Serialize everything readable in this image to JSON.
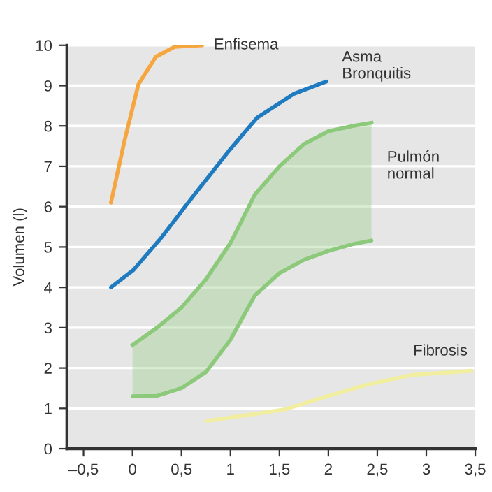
{
  "chart_data": {
    "type": "line",
    "ylabel": "Volumen (l)",
    "xlim": [
      -0.67,
      3.5
    ],
    "xticks": [
      {
        "value": -0.5,
        "label": "–0,5"
      },
      0,
      {
        "value": 0.5,
        "label": "0,5"
      },
      1,
      {
        "value": 1.5,
        "label": "1,5"
      },
      2,
      {
        "value": 2.5,
        "label": "2,5"
      },
      3,
      {
        "value": 3.5,
        "label": "3,5"
      }
    ],
    "ylim": [
      0,
      10
    ],
    "yticks": [
      0,
      1,
      2,
      3,
      4,
      5,
      6,
      7,
      8,
      9,
      10
    ],
    "grid": "y",
    "series": [
      {
        "name": "Enfisema",
        "color": "#f5a640",
        "x": [
          -0.22,
          -0.08,
          0.06,
          0.24,
          0.43,
          0.71
        ],
        "values": [
          6.1,
          7.65,
          9.03,
          9.72,
          9.96,
          10.0
        ]
      },
      {
        "name": "Asma\nBronquitis",
        "color": "#1f7bc0",
        "x": [
          -0.22,
          0.01,
          0.29,
          0.62,
          0.99,
          1.27,
          1.65,
          1.98
        ],
        "values": [
          4.0,
          4.43,
          5.22,
          6.26,
          7.4,
          8.2,
          8.8,
          9.1
        ]
      },
      {
        "type": "line",
        "color": "#8cc97a",
        "x": [
          0,
          0.25,
          0.5,
          0.75,
          1,
          1.25,
          1.5,
          1.75,
          2,
          2.25,
          2.44
        ],
        "values": [
          1.3,
          1.31,
          1.5,
          1.9,
          2.7,
          3.8,
          4.35,
          4.68,
          4.9,
          5.07,
          5.16
        ]
      },
      {
        "name": "Pulmón\nnormal",
        "type": "area",
        "color": "#8cc97a",
        "x": [
          0,
          0.25,
          0.5,
          0.75,
          1,
          1.25,
          1.5,
          1.75,
          2,
          2.25,
          2.44
        ],
        "values": [
          2.57,
          3.0,
          3.5,
          4.2,
          5.1,
          6.3,
          7.0,
          7.55,
          7.87,
          8.0,
          8.08
        ]
      },
      {
        "name": "Fibrosis",
        "color": "#f2eea0",
        "x": [
          0.76,
          1.08,
          1.55,
          1.92,
          2.4,
          2.86,
          3.46
        ],
        "values": [
          0.69,
          0.8,
          0.97,
          1.25,
          1.59,
          1.83,
          1.93
        ]
      }
    ]
  }
}
